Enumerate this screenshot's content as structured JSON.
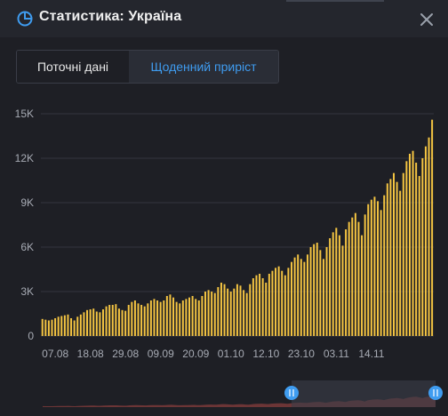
{
  "header": {
    "title": "Статистика: Україна",
    "icon": "pie-chart-icon",
    "close_icon": "close-icon"
  },
  "tabs": [
    {
      "label": "Поточні дані",
      "active": false
    },
    {
      "label": "Щоденний приріст",
      "active": true
    }
  ],
  "colors": {
    "background": "#1e1f25",
    "bar": "#f5c542",
    "accent": "#3f9cf0",
    "navigator_fill": "#7a3a3a",
    "navigator_selection": "#3a3e4a"
  },
  "chart_data": {
    "type": "bar",
    "title": "",
    "xlabel": "",
    "ylabel": "",
    "ylim": [
      0,
      15000
    ],
    "y_ticks": [
      {
        "value": 0,
        "label": "0"
      },
      {
        "value": 3000,
        "label": "3K"
      },
      {
        "value": 6000,
        "label": "6K"
      },
      {
        "value": 9000,
        "label": "9K"
      },
      {
        "value": 12000,
        "label": "12K"
      },
      {
        "value": 15000,
        "label": "15K"
      }
    ],
    "x_ticks": [
      {
        "index": 4,
        "label": "07.08"
      },
      {
        "index": 15,
        "label": "18.08"
      },
      {
        "index": 26,
        "label": "29.08"
      },
      {
        "index": 37,
        "label": "09.09"
      },
      {
        "index": 48,
        "label": "20.09"
      },
      {
        "index": 59,
        "label": "01.10"
      },
      {
        "index": 70,
        "label": "12.10"
      },
      {
        "index": 81,
        "label": "23.10"
      },
      {
        "index": 92,
        "label": "03.11"
      },
      {
        "index": 103,
        "label": "14.11"
      }
    ],
    "grid": true,
    "series": [
      {
        "values": [
          1150,
          1100,
          1050,
          1100,
          1200,
          1300,
          1350,
          1400,
          1450,
          1200,
          1050,
          1300,
          1450,
          1600,
          1750,
          1800,
          1850,
          1650,
          1600,
          1800,
          2000,
          2100,
          2100,
          2150,
          1850,
          1750,
          1700,
          2100,
          2300,
          2400,
          2200,
          2100,
          2000,
          2200,
          2400,
          2500,
          2400,
          2300,
          2400,
          2700,
          2800,
          2600,
          2300,
          2200,
          2400,
          2500,
          2600,
          2700,
          2500,
          2400,
          2700,
          3000,
          3100,
          3000,
          2900,
          3300,
          3600,
          3500,
          3200,
          3000,
          3200,
          3500,
          3400,
          3100,
          2900,
          3500,
          3900,
          4100,
          4200,
          3900,
          3600,
          4200,
          4400,
          4600,
          4700,
          4400,
          4100,
          4600,
          5000,
          5300,
          5500,
          5200,
          5000,
          5500,
          6000,
          6200,
          6300,
          5800,
          5200,
          6000,
          6600,
          7000,
          7300,
          6800,
          6100,
          7200,
          7700,
          8000,
          8300,
          7700,
          6800,
          8200,
          8900,
          9200,
          9400,
          9100,
          8500,
          9500,
          10300,
          10600,
          11000,
          10400,
          9800,
          11000,
          11800,
          12300,
          12500,
          11700,
          10800,
          12000,
          12800,
          13400,
          14600
        ]
      }
    ]
  }
}
